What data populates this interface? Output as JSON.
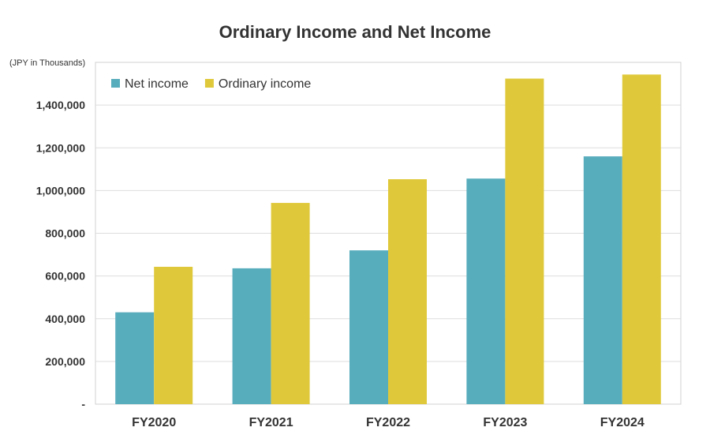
{
  "chart_data": {
    "type": "bar",
    "title": "Ordinary Income and Net Income",
    "unit_label": "(JPY in Thousands)",
    "categories": [
      "FY2020",
      "FY2021",
      "FY2022",
      "FY2023",
      "FY2024"
    ],
    "series": [
      {
        "name": "Net income",
        "color": "#58adbd",
        "values": [
          430000,
          636000,
          720000,
          1056000,
          1160000
        ]
      },
      {
        "name": "Ordinary income",
        "color": "#dfc93b",
        "values": [
          643000,
          942000,
          1053000,
          1524000,
          1543000
        ]
      }
    ],
    "ylim": [
      0,
      1600000
    ],
    "yticks": [
      0,
      200000,
      400000,
      600000,
      800000,
      1000000,
      1200000,
      1400000,
      1600000
    ],
    "ytick_labels": [
      "-",
      "200,000",
      "400,000",
      "600,000",
      "800,000",
      "1,000,000",
      "1,200,000",
      "1,400,000",
      ""
    ],
    "grid": true,
    "legend_position": "top-left"
  }
}
